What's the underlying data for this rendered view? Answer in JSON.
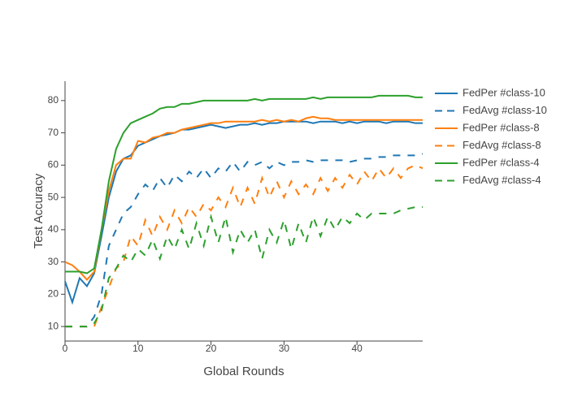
{
  "chart_data": {
    "type": "line",
    "x_label": "Global Rounds",
    "y_label": "Test Accuracy",
    "x": [
      0,
      1,
      2,
      3,
      4,
      5,
      6,
      7,
      8,
      9,
      10,
      11,
      12,
      13,
      14,
      15,
      16,
      17,
      18,
      19,
      20,
      21,
      22,
      23,
      24,
      25,
      26,
      27,
      28,
      29,
      30,
      31,
      32,
      33,
      34,
      35,
      36,
      37,
      38,
      39,
      40,
      41,
      42,
      43,
      44,
      45,
      46,
      47,
      48,
      49
    ],
    "xlim": [
      0,
      49
    ],
    "ylim": [
      5.5,
      86
    ],
    "xticks": [
      0,
      10,
      20,
      30,
      40
    ],
    "yticks": [
      10,
      20,
      30,
      40,
      50,
      60,
      70,
      80
    ],
    "series": [
      {
        "name": "FedPer #class-10",
        "color": "#1f77b4",
        "dash": "solid",
        "values": [
          24,
          17.5,
          25,
          22.5,
          26.5,
          38,
          50,
          58,
          62,
          63,
          66,
          67,
          68,
          69,
          69.5,
          70,
          71,
          71,
          71.5,
          72,
          72.5,
          72,
          71.5,
          72,
          72.5,
          72.5,
          73,
          72.5,
          73,
          73,
          73.5,
          73.5,
          73.5,
          73.5,
          73,
          73.5,
          73.5,
          73.5,
          73,
          73.5,
          73,
          73.5,
          73.5,
          73.5,
          73,
          73.5,
          73.5,
          73.5,
          73,
          73
        ]
      },
      {
        "name": "FedAvg #class-10",
        "color": "#1f77b4",
        "dash": "dash",
        "values": [
          10,
          10,
          10,
          10,
          13,
          20,
          35,
          40,
          45,
          47,
          51,
          54,
          52,
          56,
          53,
          57,
          55,
          58,
          56,
          59,
          56,
          59,
          58,
          61,
          58,
          61,
          60,
          61,
          59,
          61,
          60,
          61,
          61,
          61.5,
          61,
          61.5,
          61.5,
          61.5,
          61.5,
          61,
          61.5,
          62,
          62,
          62.5,
          62.5,
          63,
          63,
          63,
          63,
          63.5
        ]
      },
      {
        "name": "FedPer #class-8",
        "color": "#ff7f0e",
        "dash": "solid",
        "values": [
          30,
          29,
          27,
          24.5,
          27,
          40,
          52,
          60,
          62,
          62,
          67.5,
          67,
          68.5,
          69,
          70,
          70,
          71,
          71.5,
          72,
          72.5,
          73,
          73,
          73.5,
          73.5,
          73.5,
          73.5,
          73.5,
          74,
          73.5,
          74,
          73.5,
          74,
          73.5,
          74.5,
          75,
          74.5,
          74.5,
          74,
          74,
          74,
          74,
          74,
          74,
          74,
          74,
          74,
          74,
          74,
          74,
          74
        ]
      },
      {
        "name": "FedAvg #class-8",
        "color": "#ff7f0e",
        "dash": "dash",
        "values": [
          10,
          10,
          10,
          10,
          10,
          16,
          22,
          28,
          30,
          38,
          35,
          43,
          38,
          44,
          40,
          46,
          42,
          47,
          44,
          48,
          46,
          50,
          47,
          53,
          47,
          53,
          48,
          56,
          50,
          55,
          50,
          55,
          51,
          54,
          51,
          56,
          52,
          56,
          53,
          57,
          54,
          58,
          55,
          59,
          56,
          59,
          56,
          59,
          60,
          59
        ]
      },
      {
        "name": "FedPer #class-4",
        "color": "#2ca02c",
        "dash": "solid",
        "values": [
          27,
          27,
          27,
          26.5,
          28,
          40,
          55,
          65,
          70,
          73,
          74,
          75,
          76,
          77.5,
          78,
          78,
          79,
          79,
          79.5,
          80,
          80,
          80,
          80,
          80,
          80,
          80,
          80.5,
          80,
          80.5,
          80.5,
          80.5,
          80.5,
          80.5,
          80.5,
          81,
          80.5,
          81,
          81,
          81,
          81,
          81,
          81,
          81,
          81.5,
          81.5,
          81.5,
          81.5,
          81.5,
          81,
          81
        ]
      },
      {
        "name": "FedAvg #class-4",
        "color": "#2ca02c",
        "dash": "dash",
        "values": [
          10,
          10,
          10,
          10,
          11,
          15,
          25,
          28,
          32,
          30,
          34,
          32,
          37,
          31,
          38,
          34,
          40,
          34,
          42,
          35,
          44,
          36,
          44,
          33,
          40,
          36,
          40,
          31,
          40,
          36,
          43,
          34,
          42,
          36,
          44,
          38,
          44,
          40,
          44,
          42,
          45,
          43,
          45,
          45,
          45,
          45,
          46,
          46.5,
          47,
          47
        ]
      }
    ]
  }
}
